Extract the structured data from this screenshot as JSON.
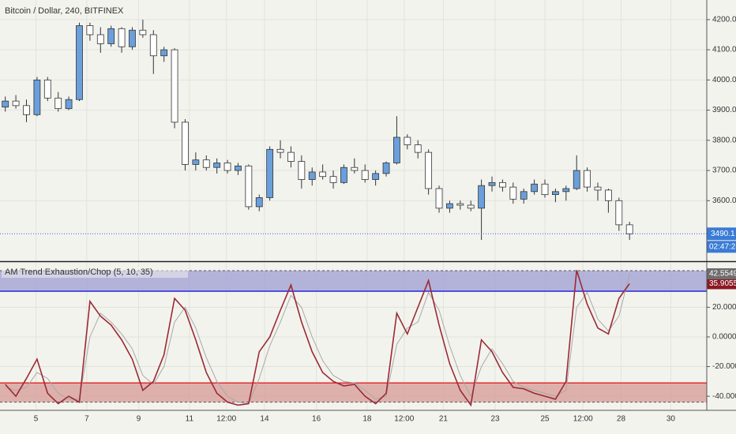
{
  "chart_data": [
    {
      "type": "candlestick",
      "title": "Bitcoin / Dollar, 240, BITFINEX",
      "colors": {
        "up": "#6a9fdc",
        "down": "#ffffff",
        "border": "#333333",
        "price_line": "#3a5fd8"
      },
      "open": [
        3910,
        3930,
        3915,
        3885,
        4000,
        3940,
        3905,
        3935,
        4180,
        4150,
        4120,
        4170,
        4110,
        4165,
        4150,
        4080,
        4100,
        3860,
        3720,
        3735,
        3710,
        3725,
        3700,
        3715,
        3580,
        3610,
        3770,
        3760,
        3730,
        3670,
        3695,
        3680,
        3660,
        3710,
        3700,
        3670,
        3690,
        3725,
        3810,
        3785,
        3760,
        3640,
        3575,
        3590,
        3585,
        3575,
        3650,
        3660,
        3645,
        3605,
        3630,
        3655,
        3620,
        3630,
        3640,
        3700,
        3645,
        3635,
        3600,
        3520
      ],
      "high": [
        3945,
        3950,
        3935,
        4010,
        4010,
        3960,
        3945,
        4190,
        4190,
        4175,
        4180,
        4175,
        4175,
        4200,
        4165,
        4110,
        4105,
        3870,
        3760,
        3750,
        3740,
        3735,
        3725,
        3720,
        3620,
        3780,
        3800,
        3780,
        3750,
        3710,
        3720,
        3700,
        3720,
        3740,
        3720,
        3700,
        3730,
        3880,
        3820,
        3800,
        3770,
        3650,
        3600,
        3600,
        3600,
        3670,
        3680,
        3670,
        3660,
        3640,
        3670,
        3670,
        3640,
        3650,
        3750,
        3710,
        3660,
        3640,
        3610,
        3530
      ],
      "low": [
        3895,
        3905,
        3860,
        3880,
        3930,
        3895,
        3900,
        3930,
        4130,
        4090,
        4110,
        4090,
        4100,
        4140,
        4020,
        4060,
        3840,
        3700,
        3700,
        3700,
        3690,
        3690,
        3685,
        3570,
        3565,
        3600,
        3740,
        3710,
        3640,
        3650,
        3670,
        3640,
        3655,
        3690,
        3660,
        3650,
        3680,
        3720,
        3770,
        3740,
        3620,
        3560,
        3560,
        3570,
        3565,
        3470,
        3630,
        3630,
        3590,
        3590,
        3620,
        3610,
        3595,
        3600,
        3635,
        3630,
        3600,
        3560,
        3500,
        3470
      ],
      "close": [
        3930,
        3915,
        3885,
        4000,
        3940,
        3905,
        3935,
        4180,
        4150,
        4120,
        4170,
        4110,
        4165,
        4150,
        4080,
        4100,
        3860,
        3720,
        3735,
        3710,
        3725,
        3700,
        3715,
        3580,
        3610,
        3770,
        3760,
        3730,
        3670,
        3695,
        3680,
        3660,
        3710,
        3700,
        3670,
        3690,
        3725,
        3810,
        3785,
        3760,
        3640,
        3575,
        3590,
        3585,
        3575,
        3650,
        3660,
        3645,
        3605,
        3630,
        3655,
        3620,
        3630,
        3640,
        3700,
        3645,
        3635,
        3600,
        3520,
        3490.1
      ],
      "ylim": [
        3402,
        4265
      ],
      "yticks": [
        {
          "value": 3600,
          "label": "3600.0"
        },
        {
          "value": 3700,
          "label": "3700.0"
        },
        {
          "value": 3800,
          "label": "3800.0"
        },
        {
          "value": 3900,
          "label": "3900.0"
        },
        {
          "value": 4000,
          "label": "4000.0"
        },
        {
          "value": 4100,
          "label": "4100.0"
        },
        {
          "value": 4200,
          "label": "4200.0"
        }
      ],
      "xlim": [
        -0.5,
        66.3
      ],
      "xticks": [
        {
          "value": 2.9,
          "label": "5"
        },
        {
          "value": 7.7,
          "label": "7"
        },
        {
          "value": 12.6,
          "label": "9"
        },
        {
          "value": 17.4,
          "label": "11"
        },
        {
          "value": 20.9,
          "label": "12:00"
        },
        {
          "value": 24.5,
          "label": "14"
        },
        {
          "value": 29.4,
          "label": "16"
        },
        {
          "value": 34.2,
          "label": "18"
        },
        {
          "value": 37.7,
          "label": "12:00"
        },
        {
          "value": 41.4,
          "label": "21"
        },
        {
          "value": 46.3,
          "label": "23"
        },
        {
          "value": 51,
          "label": "25"
        },
        {
          "value": 54.6,
          "label": "12:00"
        },
        {
          "value": 58.2,
          "label": "28"
        },
        {
          "value": 62.9,
          "label": "30"
        }
      ],
      "countdown": "02:47:28",
      "grid": true
    },
    {
      "type": "line",
      "title": "AM Trend Exhaustion/Chop (5, 10, 35)",
      "series": [
        {
          "color": "#9b2a33",
          "values": [
            -32,
            -40,
            -28,
            -15,
            -38,
            -45,
            -40,
            -44,
            24,
            14,
            8,
            -2,
            -15,
            -36,
            -30,
            -12,
            26,
            18,
            -2,
            -24,
            -38,
            -44,
            -46,
            -45,
            -10,
            0,
            18,
            35,
            10,
            -10,
            -24,
            -30,
            -33,
            -32,
            -40,
            -45,
            -38,
            16,
            2,
            20,
            38,
            8,
            -18,
            -36,
            -46,
            -2,
            -10,
            -24,
            -34,
            -35,
            -38,
            -40,
            -42,
            -30,
            45,
            22,
            6,
            2,
            26,
            35.9055
          ]
        },
        {
          "color": "#a8a8a8",
          "values": [
            -34,
            -36,
            -34,
            -24,
            -28,
            -38,
            -42,
            -42,
            0,
            16,
            10,
            2,
            -8,
            -26,
            -32,
            -20,
            10,
            20,
            6,
            -14,
            -30,
            -40,
            -44,
            -45,
            -28,
            -6,
            10,
            28,
            20,
            0,
            -16,
            -26,
            -30,
            -31,
            -36,
            -42,
            -40,
            -5,
            6,
            10,
            30,
            18,
            -6,
            -26,
            -40,
            -20,
            -8,
            -18,
            -30,
            -34,
            -36,
            -38,
            -40,
            -36,
            20,
            30,
            12,
            4,
            14,
            42.5549
          ]
        }
      ],
      "upper_band": {
        "range": [
          30.8,
          44.7
        ],
        "fill": "#a7a7d6",
        "line": "#1a1adb"
      },
      "lower_band": {
        "range": [
          -44,
          -31
        ],
        "fill": "#d9a3a0",
        "line": "#e01010"
      },
      "ylim": [
        -49.5,
        50
      ],
      "yticks": [
        {
          "value": -40,
          "label": "-40.0000"
        },
        {
          "value": -20,
          "label": "-20.0000"
        },
        {
          "value": 0,
          "label": "0.0000"
        },
        {
          "value": 20,
          "label": "20.0000"
        }
      ],
      "grid": true
    }
  ]
}
